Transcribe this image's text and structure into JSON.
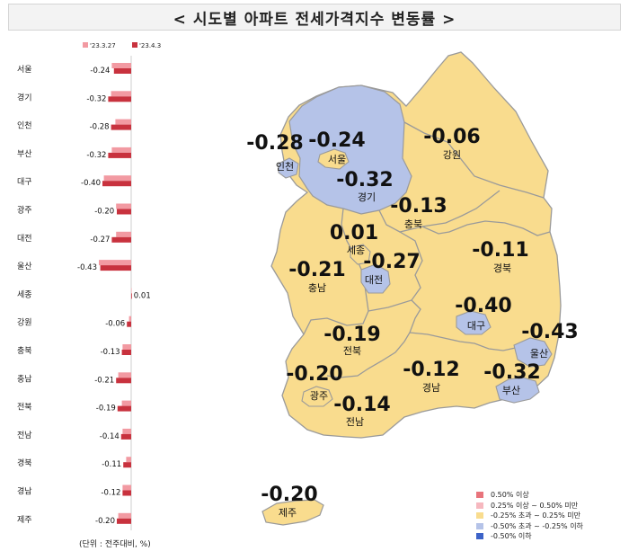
{
  "title": "< 시도별 아파트 전세가격지수 변동률 >",
  "unit_note": "(단위 : 전주대비, %)",
  "colors": {
    "prev_bar": "#f29aa2",
    "curr_bar": "#c8323e",
    "map_default": "#f9dc8e",
    "map_blue": "#b5c3e8",
    "map_border": "#9a9a9a"
  },
  "chart_data": {
    "type": "bar",
    "orientation": "horizontal",
    "series": [
      {
        "name": "'23.3.27",
        "values": [
          -0.27,
          -0.28,
          -0.22,
          -0.27,
          -0.38,
          -0.21,
          -0.21,
          -0.45,
          0.0,
          -0.03,
          -0.12,
          -0.18,
          -0.13,
          -0.12,
          -0.07,
          -0.12,
          -0.18
        ]
      },
      {
        "name": "'23.4.3",
        "values": [
          -0.24,
          -0.32,
          -0.28,
          -0.32,
          -0.4,
          -0.2,
          -0.27,
          -0.43,
          0.01,
          -0.06,
          -0.13,
          -0.21,
          -0.19,
          -0.14,
          -0.11,
          -0.12,
          -0.2
        ]
      }
    ],
    "categories": [
      "서울",
      "경기",
      "인천",
      "부산",
      "대구",
      "광주",
      "대전",
      "울산",
      "세종",
      "강원",
      "충북",
      "충남",
      "전북",
      "전남",
      "경북",
      "경남",
      "제주"
    ],
    "value_labels": [
      "-0.24",
      "-0.32",
      "-0.28",
      "-0.32",
      "-0.40",
      "-0.20",
      "-0.27",
      "-0.43",
      "0.01",
      "-0.06",
      "-0.13",
      "-0.21",
      "-0.19",
      "-0.14",
      "-0.11",
      "-0.12",
      "-0.20"
    ]
  },
  "map": {
    "regions": [
      {
        "key": "seoul",
        "name": "서울",
        "value": "-0.24"
      },
      {
        "key": "gyeonggi",
        "name": "경기",
        "value": "-0.32"
      },
      {
        "key": "incheon",
        "name": "인천",
        "value": "-0.28"
      },
      {
        "key": "gangwon",
        "name": "강원",
        "value": "-0.06"
      },
      {
        "key": "chungbuk",
        "name": "충북",
        "value": "-0.13"
      },
      {
        "key": "sejong",
        "name": "세종",
        "value": "0.01"
      },
      {
        "key": "chungnam",
        "name": "충남",
        "value": "-0.21"
      },
      {
        "key": "daejeon",
        "name": "대전",
        "value": "-0.27"
      },
      {
        "key": "gyeongbuk",
        "name": "경북",
        "value": "-0.11"
      },
      {
        "key": "daegu",
        "name": "대구",
        "value": "-0.40"
      },
      {
        "key": "ulsan",
        "name": "울산",
        "value": "-0.43"
      },
      {
        "key": "jeonbuk",
        "name": "전북",
        "value": "-0.19"
      },
      {
        "key": "gyeongnam",
        "name": "경남",
        "value": "-0.12"
      },
      {
        "key": "busan",
        "name": "부산",
        "value": "-0.32"
      },
      {
        "key": "gwangju",
        "name": "광주",
        "value": "-0.20"
      },
      {
        "key": "jeonnam",
        "name": "전남",
        "value": "-0.14"
      },
      {
        "key": "jeju",
        "name": "제주",
        "value": "-0.20"
      }
    ]
  },
  "legend": {
    "items": [
      {
        "label": "0.50% 이상",
        "color": "#e8747c"
      },
      {
        "label": "0.25% 이상 ~ 0.50% 미만",
        "color": "#f6b8bf"
      },
      {
        "label": "-0.25% 초과 ~ 0.25% 미만",
        "color": "#f9dc8e"
      },
      {
        "label": "-0.50% 초과 ~ -0.25% 이하",
        "color": "#b5c3e8"
      },
      {
        "label": "-0.50% 이하",
        "color": "#3d63c8"
      }
    ]
  }
}
